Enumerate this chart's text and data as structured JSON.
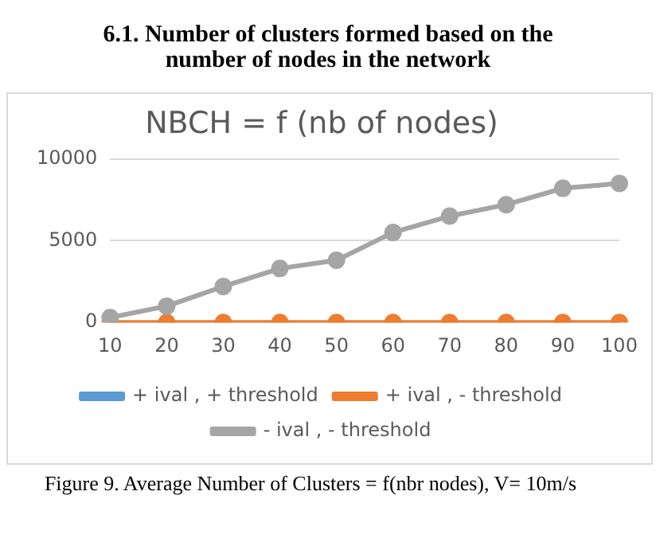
{
  "chart_data": {
    "type": "line",
    "title": "NBCH = f (nb of nodes)",
    "annotations": [
      "6.1.  Number of clusters formed based on the number of nodes in the network",
      "Figure 9.    Average Number of Clusters = f(nbr nodes), V= 10m/s"
    ],
    "categories": [
      "10",
      "20",
      "30",
      "40",
      "50",
      "60",
      "70",
      "80",
      "90",
      "100"
    ],
    "series": [
      {
        "name": "+ ival , + threshold",
        "color": "#5b9bd5",
        "values": [
          null,
          null,
          null,
          null,
          null,
          null,
          null,
          null,
          null,
          null
        ]
      },
      {
        "name": "+ ival , - threshold",
        "color": "#ed7d31",
        "values": [
          0,
          0,
          0,
          0,
          0,
          0,
          0,
          0,
          0,
          0
        ]
      },
      {
        "name": "- ival , - threshold",
        "color": "#a5a5a5",
        "values": [
          300,
          1000,
          2200,
          3300,
          3800,
          5500,
          6500,
          7200,
          8200,
          8500
        ]
      }
    ],
    "ylim": [
      0,
      10000
    ],
    "yticks": [
      0,
      5000,
      10000
    ],
    "grid": "y",
    "legend": "bottom",
    "marker": "circle",
    "line_style": "solid"
  }
}
